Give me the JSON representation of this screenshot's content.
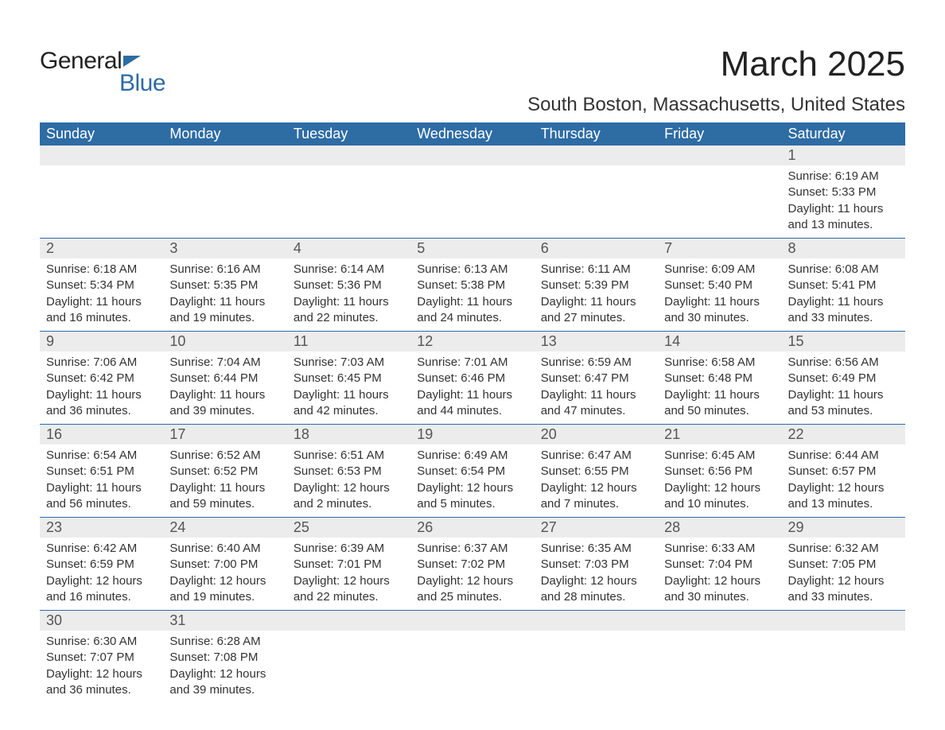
{
  "brand": {
    "part1": "General",
    "part2": "Blue"
  },
  "title": "March 2025",
  "location": "South Boston, Massachusetts, United States",
  "colors": {
    "header_bg": "#2e6ca4",
    "strip_bg": "#ececec",
    "text": "#333333",
    "bg": "#ffffff"
  },
  "dayNames": [
    "Sunday",
    "Monday",
    "Tuesday",
    "Wednesday",
    "Thursday",
    "Friday",
    "Saturday"
  ],
  "weeks": [
    [
      null,
      null,
      null,
      null,
      null,
      null,
      {
        "n": "1",
        "sunrise": "Sunrise: 6:19 AM",
        "sunset": "Sunset: 5:33 PM",
        "day1": "Daylight: 11 hours",
        "day2": "and 13 minutes."
      }
    ],
    [
      {
        "n": "2",
        "sunrise": "Sunrise: 6:18 AM",
        "sunset": "Sunset: 5:34 PM",
        "day1": "Daylight: 11 hours",
        "day2": "and 16 minutes."
      },
      {
        "n": "3",
        "sunrise": "Sunrise: 6:16 AM",
        "sunset": "Sunset: 5:35 PM",
        "day1": "Daylight: 11 hours",
        "day2": "and 19 minutes."
      },
      {
        "n": "4",
        "sunrise": "Sunrise: 6:14 AM",
        "sunset": "Sunset: 5:36 PM",
        "day1": "Daylight: 11 hours",
        "day2": "and 22 minutes."
      },
      {
        "n": "5",
        "sunrise": "Sunrise: 6:13 AM",
        "sunset": "Sunset: 5:38 PM",
        "day1": "Daylight: 11 hours",
        "day2": "and 24 minutes."
      },
      {
        "n": "6",
        "sunrise": "Sunrise: 6:11 AM",
        "sunset": "Sunset: 5:39 PM",
        "day1": "Daylight: 11 hours",
        "day2": "and 27 minutes."
      },
      {
        "n": "7",
        "sunrise": "Sunrise: 6:09 AM",
        "sunset": "Sunset: 5:40 PM",
        "day1": "Daylight: 11 hours",
        "day2": "and 30 minutes."
      },
      {
        "n": "8",
        "sunrise": "Sunrise: 6:08 AM",
        "sunset": "Sunset: 5:41 PM",
        "day1": "Daylight: 11 hours",
        "day2": "and 33 minutes."
      }
    ],
    [
      {
        "n": "9",
        "sunrise": "Sunrise: 7:06 AM",
        "sunset": "Sunset: 6:42 PM",
        "day1": "Daylight: 11 hours",
        "day2": "and 36 minutes."
      },
      {
        "n": "10",
        "sunrise": "Sunrise: 7:04 AM",
        "sunset": "Sunset: 6:44 PM",
        "day1": "Daylight: 11 hours",
        "day2": "and 39 minutes."
      },
      {
        "n": "11",
        "sunrise": "Sunrise: 7:03 AM",
        "sunset": "Sunset: 6:45 PM",
        "day1": "Daylight: 11 hours",
        "day2": "and 42 minutes."
      },
      {
        "n": "12",
        "sunrise": "Sunrise: 7:01 AM",
        "sunset": "Sunset: 6:46 PM",
        "day1": "Daylight: 11 hours",
        "day2": "and 44 minutes."
      },
      {
        "n": "13",
        "sunrise": "Sunrise: 6:59 AM",
        "sunset": "Sunset: 6:47 PM",
        "day1": "Daylight: 11 hours",
        "day2": "and 47 minutes."
      },
      {
        "n": "14",
        "sunrise": "Sunrise: 6:58 AM",
        "sunset": "Sunset: 6:48 PM",
        "day1": "Daylight: 11 hours",
        "day2": "and 50 minutes."
      },
      {
        "n": "15",
        "sunrise": "Sunrise: 6:56 AM",
        "sunset": "Sunset: 6:49 PM",
        "day1": "Daylight: 11 hours",
        "day2": "and 53 minutes."
      }
    ],
    [
      {
        "n": "16",
        "sunrise": "Sunrise: 6:54 AM",
        "sunset": "Sunset: 6:51 PM",
        "day1": "Daylight: 11 hours",
        "day2": "and 56 minutes."
      },
      {
        "n": "17",
        "sunrise": "Sunrise: 6:52 AM",
        "sunset": "Sunset: 6:52 PM",
        "day1": "Daylight: 11 hours",
        "day2": "and 59 minutes."
      },
      {
        "n": "18",
        "sunrise": "Sunrise: 6:51 AM",
        "sunset": "Sunset: 6:53 PM",
        "day1": "Daylight: 12 hours",
        "day2": "and 2 minutes."
      },
      {
        "n": "19",
        "sunrise": "Sunrise: 6:49 AM",
        "sunset": "Sunset: 6:54 PM",
        "day1": "Daylight: 12 hours",
        "day2": "and 5 minutes."
      },
      {
        "n": "20",
        "sunrise": "Sunrise: 6:47 AM",
        "sunset": "Sunset: 6:55 PM",
        "day1": "Daylight: 12 hours",
        "day2": "and 7 minutes."
      },
      {
        "n": "21",
        "sunrise": "Sunrise: 6:45 AM",
        "sunset": "Sunset: 6:56 PM",
        "day1": "Daylight: 12 hours",
        "day2": "and 10 minutes."
      },
      {
        "n": "22",
        "sunrise": "Sunrise: 6:44 AM",
        "sunset": "Sunset: 6:57 PM",
        "day1": "Daylight: 12 hours",
        "day2": "and 13 minutes."
      }
    ],
    [
      {
        "n": "23",
        "sunrise": "Sunrise: 6:42 AM",
        "sunset": "Sunset: 6:59 PM",
        "day1": "Daylight: 12 hours",
        "day2": "and 16 minutes."
      },
      {
        "n": "24",
        "sunrise": "Sunrise: 6:40 AM",
        "sunset": "Sunset: 7:00 PM",
        "day1": "Daylight: 12 hours",
        "day2": "and 19 minutes."
      },
      {
        "n": "25",
        "sunrise": "Sunrise: 6:39 AM",
        "sunset": "Sunset: 7:01 PM",
        "day1": "Daylight: 12 hours",
        "day2": "and 22 minutes."
      },
      {
        "n": "26",
        "sunrise": "Sunrise: 6:37 AM",
        "sunset": "Sunset: 7:02 PM",
        "day1": "Daylight: 12 hours",
        "day2": "and 25 minutes."
      },
      {
        "n": "27",
        "sunrise": "Sunrise: 6:35 AM",
        "sunset": "Sunset: 7:03 PM",
        "day1": "Daylight: 12 hours",
        "day2": "and 28 minutes."
      },
      {
        "n": "28",
        "sunrise": "Sunrise: 6:33 AM",
        "sunset": "Sunset: 7:04 PM",
        "day1": "Daylight: 12 hours",
        "day2": "and 30 minutes."
      },
      {
        "n": "29",
        "sunrise": "Sunrise: 6:32 AM",
        "sunset": "Sunset: 7:05 PM",
        "day1": "Daylight: 12 hours",
        "day2": "and 33 minutes."
      }
    ],
    [
      {
        "n": "30",
        "sunrise": "Sunrise: 6:30 AM",
        "sunset": "Sunset: 7:07 PM",
        "day1": "Daylight: 12 hours",
        "day2": "and 36 minutes."
      },
      {
        "n": "31",
        "sunrise": "Sunrise: 6:28 AM",
        "sunset": "Sunset: 7:08 PM",
        "day1": "Daylight: 12 hours",
        "day2": "and 39 minutes."
      },
      null,
      null,
      null,
      null,
      null
    ]
  ]
}
